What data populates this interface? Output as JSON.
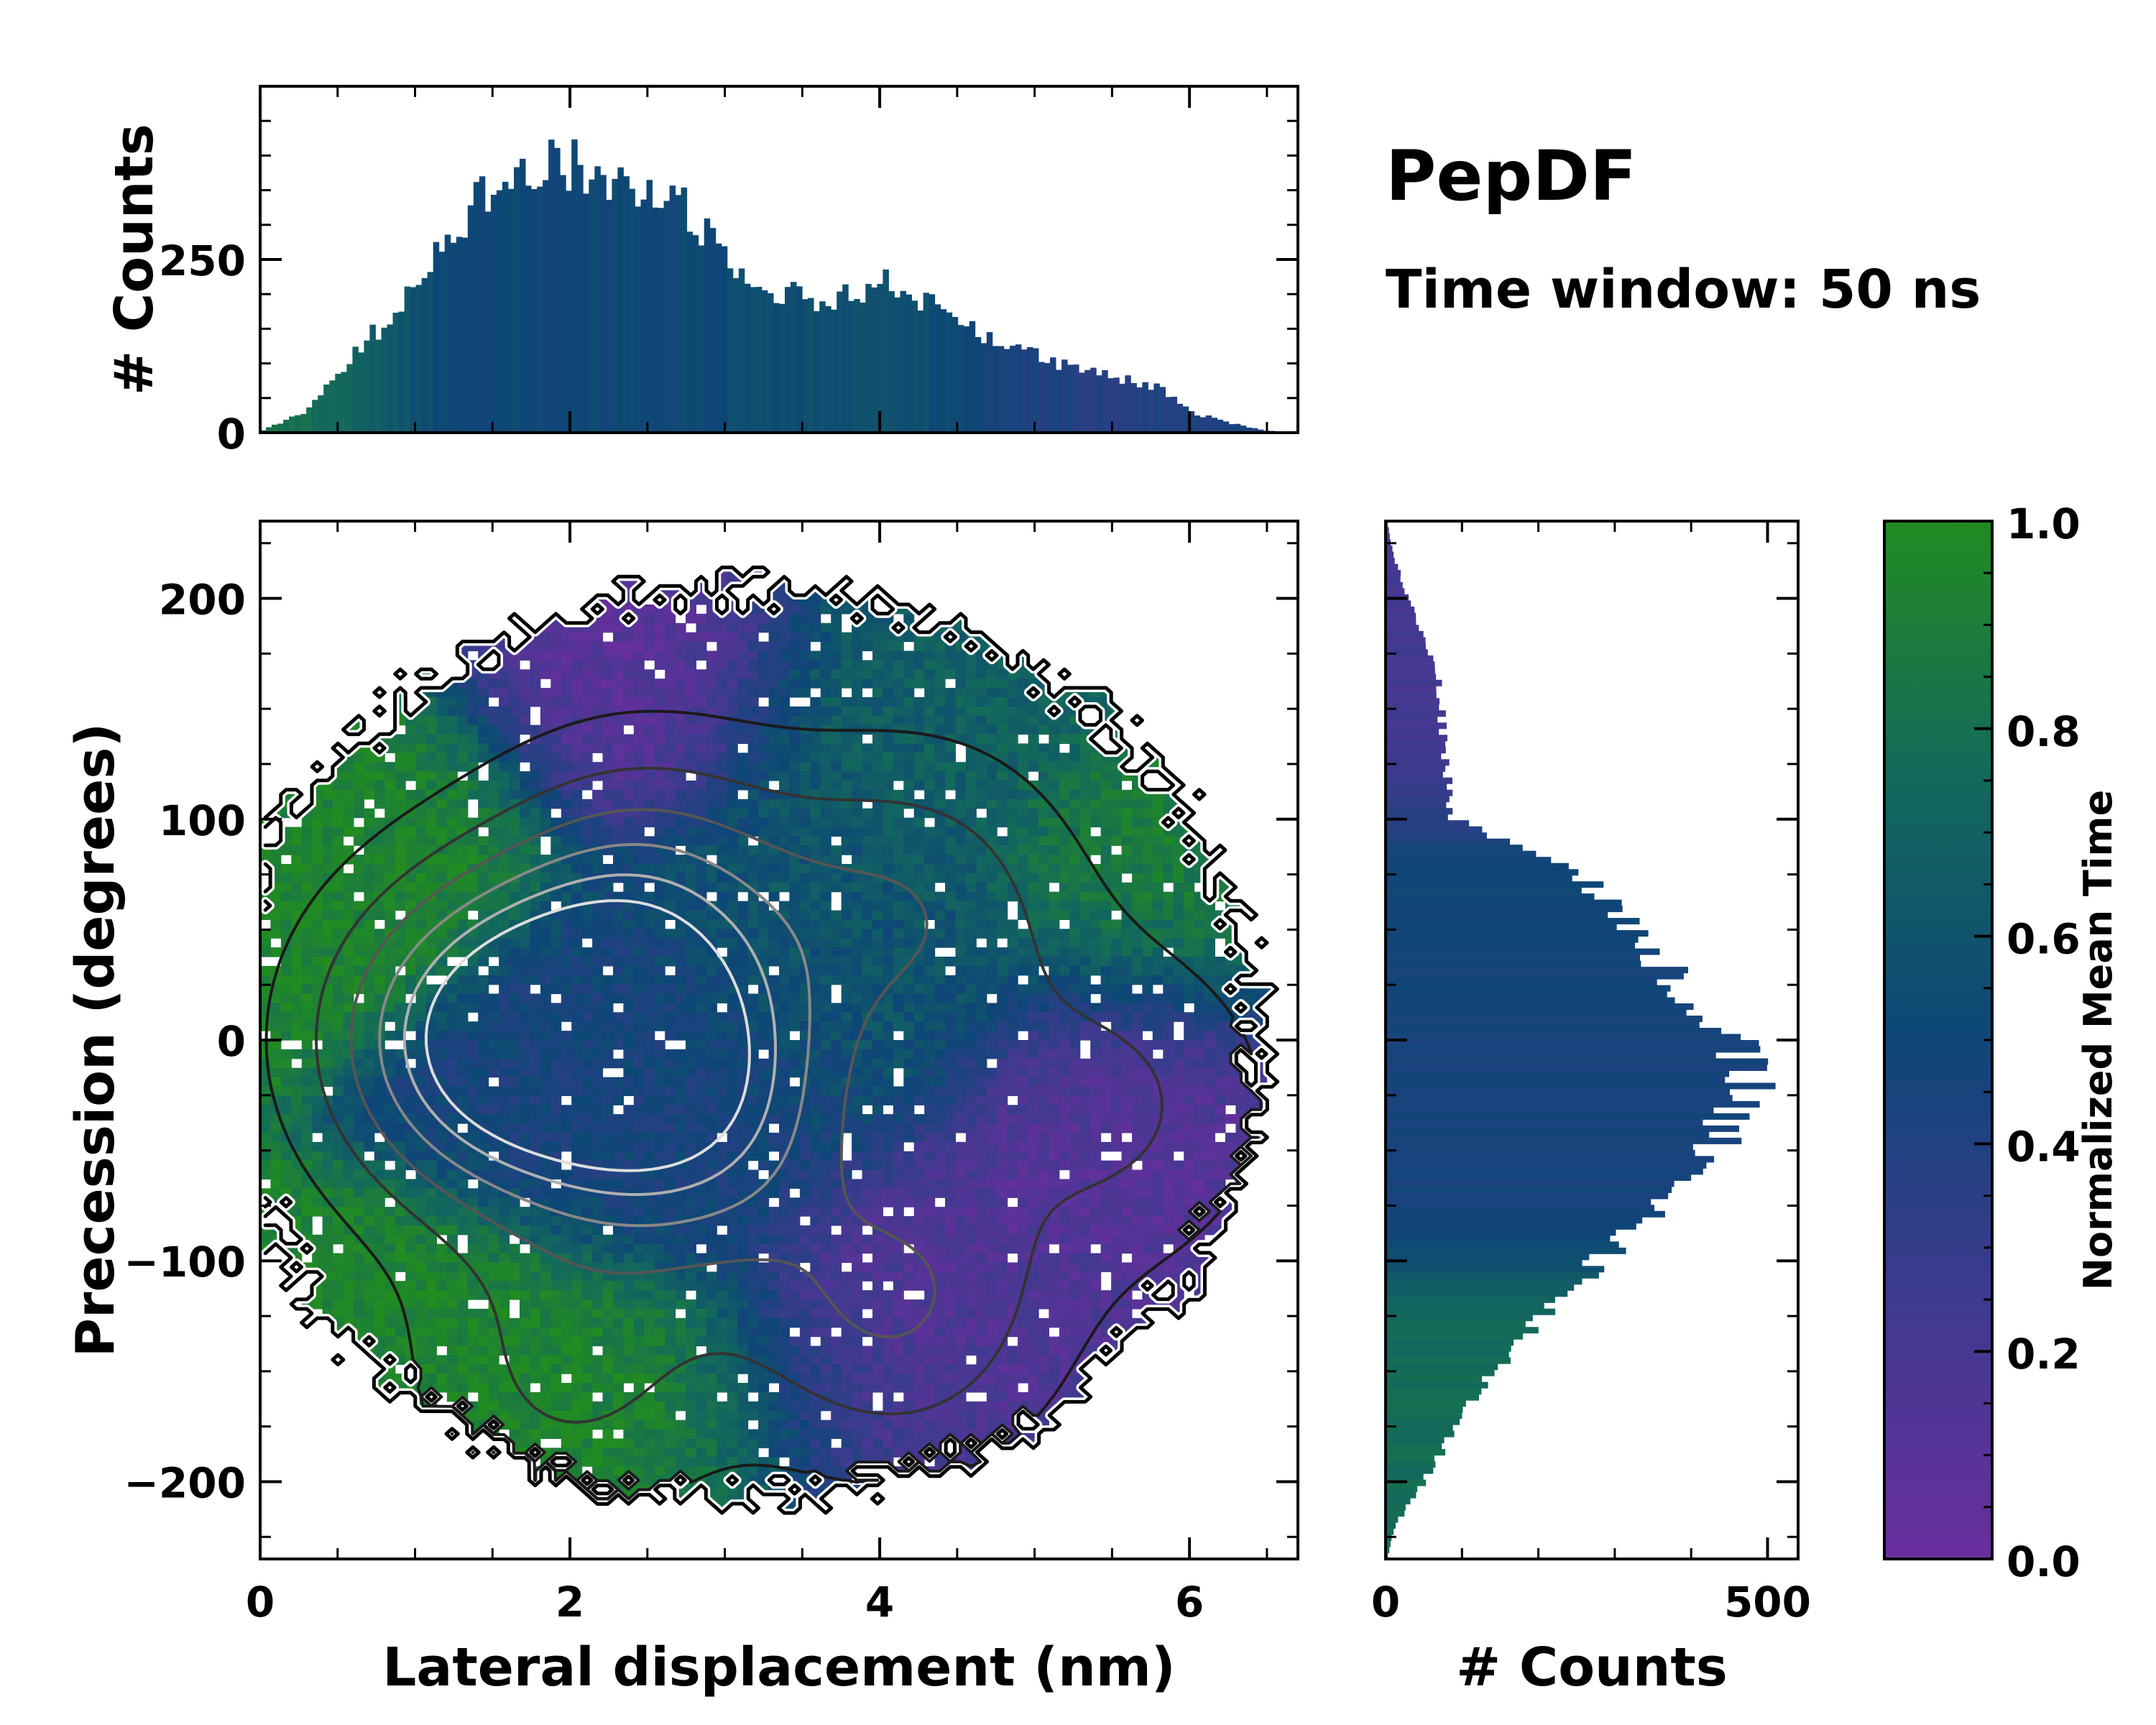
{
  "annotations": {
    "title": "PepDF",
    "subtitle": "Time window: 50 ns"
  },
  "colors": {
    "cmap_low": "#6a2e9e",
    "cmap_q1": "#3e3a8f",
    "cmap_mid": "#0e4677",
    "cmap_q3": "#13695c",
    "cmap_high": "#228b22",
    "background": "#ffffff",
    "contour_dark": "#1a1a1a",
    "contour_mid": "#555555",
    "contour_light": "#dddddd"
  },
  "chart_data": [
    {
      "id": "main_heatmap",
      "type": "heatmap",
      "xlabel": "Lateral displacement (nm)",
      "ylabel": "Precession (degrees)",
      "xlim": [
        0,
        6.7
      ],
      "ylim": [
        -235,
        235
      ],
      "xticks": [
        0,
        2,
        4,
        6
      ],
      "xtick_labels": [
        "0",
        "2",
        "4",
        "6"
      ],
      "yticks": [
        -200,
        -100,
        0,
        100,
        200
      ],
      "ytick_labels": [
        "−200",
        "−100",
        "0",
        "100",
        "200"
      ],
      "color_variable": "Normalized Mean Time",
      "density_peaks": [
        {
          "x": 1.5,
          "y": 0,
          "weight": 1.0
        },
        {
          "x": 2.7,
          "y": -25,
          "weight": 0.85
        },
        {
          "x": 2.5,
          "y": 60,
          "weight": 0.55
        },
        {
          "x": 4.1,
          "y": -120,
          "weight": 0.45
        },
        {
          "x": 4.2,
          "y": 60,
          "weight": 0.4
        },
        {
          "x": 5.5,
          "y": -30,
          "weight": 0.3
        },
        {
          "x": 2.0,
          "y": -150,
          "weight": 0.3
        }
      ],
      "mean_time_regions": [
        {
          "x": 0.4,
          "y": 110,
          "value": 0.95
        },
        {
          "x": 1.3,
          "y": -170,
          "value": 0.95
        },
        {
          "x": 2.7,
          "y": -200,
          "value": 0.95
        },
        {
          "x": 6.0,
          "y": 70,
          "value": 0.9
        },
        {
          "x": 4.3,
          "y": 160,
          "value": 0.68
        },
        {
          "x": 2.3,
          "y": 190,
          "value": 0.1
        },
        {
          "x": 4.7,
          "y": -130,
          "value": 0.15
        },
        {
          "x": 5.8,
          "y": -30,
          "value": 0.12
        },
        {
          "x": 4.0,
          "y": -190,
          "value": 0.2
        },
        {
          "x": 2.6,
          "y": -20,
          "value": 0.45
        },
        {
          "x": 3.8,
          "y": 40,
          "value": 0.6
        }
      ]
    },
    {
      "id": "top_histogram",
      "type": "bar",
      "ylabel": "# Counts",
      "xlim": [
        0,
        6.7
      ],
      "ylim": [
        0,
        500
      ],
      "yticks": [
        0,
        250
      ],
      "ytick_labels": [
        "0",
        "250"
      ],
      "profile": {
        "x": [
          0.0,
          0.3,
          0.5,
          0.8,
          1.0,
          1.2,
          1.5,
          1.8,
          2.0,
          2.3,
          2.7,
          3.0,
          3.3,
          3.6,
          3.9,
          4.1,
          4.4,
          4.8,
          5.2,
          5.5,
          5.8,
          6.0,
          6.3,
          6.5,
          6.7
        ],
        "y": [
          2,
          30,
          85,
          160,
          220,
          290,
          355,
          380,
          385,
          360,
          340,
          260,
          210,
          185,
          210,
          215,
          175,
          130,
          95,
          80,
          65,
          30,
          12,
          3,
          0
        ]
      }
    },
    {
      "id": "right_histogram",
      "type": "bar",
      "xlabel": "# Counts",
      "ylim": [
        -235,
        235
      ],
      "xlim": [
        0,
        540
      ],
      "xticks": [
        0,
        500
      ],
      "xtick_labels": [
        "0",
        "500"
      ],
      "profile": {
        "y": [
          -235,
          -220,
          -200,
          -180,
          -160,
          -140,
          -120,
          -100,
          -80,
          -60,
          -40,
          -20,
          0,
          20,
          40,
          60,
          80,
          100,
          120,
          140,
          160,
          180,
          200,
          220,
          235
        ],
        "x": [
          2,
          12,
          50,
          85,
          120,
          170,
          215,
          285,
          345,
          385,
          445,
          475,
          450,
          400,
          345,
          300,
          240,
          90,
          80,
          75,
          70,
          55,
          30,
          10,
          2
        ]
      }
    },
    {
      "id": "colorbar",
      "type": "colorbar",
      "label": "Normalized Mean Time",
      "range": [
        0,
        1
      ],
      "ticks": [
        0,
        0.2,
        0.4,
        0.6,
        0.8,
        1.0
      ],
      "tick_labels": [
        "0.0",
        "0.2",
        "0.4",
        "0.6",
        "0.8",
        "1.0"
      ]
    }
  ]
}
